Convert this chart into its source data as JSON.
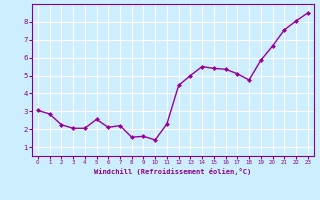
{
  "x": [
    0,
    1,
    2,
    3,
    4,
    5,
    6,
    7,
    8,
    9,
    10,
    11,
    12,
    13,
    14,
    15,
    16,
    17,
    18,
    19,
    20,
    21,
    22,
    23
  ],
  "y": [
    3.05,
    2.85,
    2.25,
    2.05,
    2.05,
    2.55,
    2.1,
    2.2,
    1.55,
    1.6,
    1.4,
    2.3,
    4.45,
    5.0,
    5.5,
    5.4,
    5.35,
    5.1,
    4.75,
    5.85,
    6.65,
    7.55,
    8.05,
    8.5
  ],
  "line_color": "#990099",
  "marker": "D",
  "marker_size": 2,
  "xlabel": "Windchill (Refroidissement éolien,°C)",
  "ylabel": "",
  "xlim": [
    -0.5,
    23.5
  ],
  "ylim": [
    0.5,
    9.0
  ],
  "yticks": [
    1,
    2,
    3,
    4,
    5,
    6,
    7,
    8
  ],
  "xticks": [
    0,
    1,
    2,
    3,
    4,
    5,
    6,
    7,
    8,
    9,
    10,
    11,
    12,
    13,
    14,
    15,
    16,
    17,
    18,
    19,
    20,
    21,
    22,
    23
  ],
  "bg_color": "#cceeff",
  "grid_color": "#ffffff",
  "tick_color": "#880088",
  "label_color": "#880088",
  "spine_color": "#880088",
  "title": ""
}
